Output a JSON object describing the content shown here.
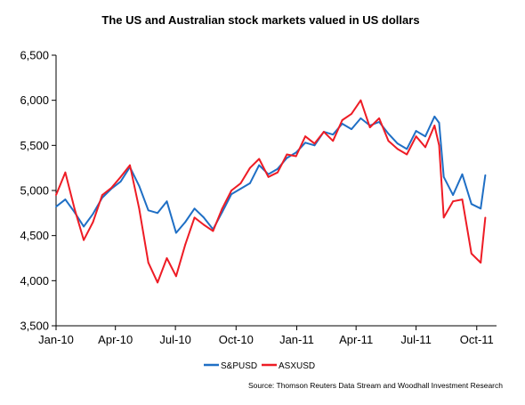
{
  "chart_data": {
    "type": "line",
    "title": "The US and Australian stock markets valued in US dollars",
    "source": "Source: Thomson Reuters Data Stream and Woodhall Investment Research",
    "xlabel": "",
    "ylabel": "",
    "ylim": [
      3500,
      6500
    ],
    "xlim": [
      "2010-01-01",
      "2011-10-31"
    ],
    "y_ticks": [
      "3,500",
      "4,000",
      "4,500",
      "5,000",
      "5,500",
      "6,000",
      "6,500"
    ],
    "y_tick_values": [
      3500,
      4000,
      4500,
      5000,
      5500,
      6000,
      6500
    ],
    "x_ticks": [
      "Jan-10",
      "Apr-10",
      "Jul-10",
      "Oct-10",
      "Jan-11",
      "Apr-11",
      "Jul-11",
      "Oct-11"
    ],
    "x_tick_dates": [
      "2010-01-01",
      "2010-04-01",
      "2010-07-01",
      "2010-10-01",
      "2011-01-01",
      "2011-04-01",
      "2011-07-01",
      "2011-10-01"
    ],
    "grid": false,
    "legend": "bottom-center",
    "colors": {
      "S&PUSD": "#1f6fc5",
      "ASXUSD": "#ee1c25"
    },
    "series": [
      {
        "name": "S&PUSD",
        "x": [
          "2010-01-01",
          "2010-01-15",
          "2010-01-29",
          "2010-02-12",
          "2010-02-26",
          "2010-03-12",
          "2010-03-26",
          "2010-04-09",
          "2010-04-23",
          "2010-05-07",
          "2010-05-21",
          "2010-06-04",
          "2010-06-18",
          "2010-07-02",
          "2010-07-16",
          "2010-07-30",
          "2010-08-13",
          "2010-08-27",
          "2010-09-10",
          "2010-09-24",
          "2010-10-08",
          "2010-10-22",
          "2010-11-05",
          "2010-11-19",
          "2010-12-03",
          "2010-12-17",
          "2010-12-31",
          "2011-01-14",
          "2011-01-28",
          "2011-02-11",
          "2011-02-25",
          "2011-03-11",
          "2011-03-25",
          "2011-04-08",
          "2011-04-22",
          "2011-05-06",
          "2011-05-20",
          "2011-06-03",
          "2011-06-17",
          "2011-07-01",
          "2011-07-15",
          "2011-07-29",
          "2011-08-05",
          "2011-08-12",
          "2011-08-26",
          "2011-09-09",
          "2011-09-23",
          "2011-10-07",
          "2011-10-14"
        ],
        "values": [
          4820,
          4900,
          4760,
          4600,
          4740,
          4920,
          5020,
          5100,
          5260,
          5050,
          4780,
          4750,
          4880,
          4530,
          4650,
          4800,
          4700,
          4570,
          4760,
          4960,
          5020,
          5080,
          5280,
          5180,
          5240,
          5360,
          5420,
          5530,
          5500,
          5650,
          5620,
          5740,
          5680,
          5800,
          5720,
          5760,
          5630,
          5520,
          5460,
          5660,
          5600,
          5820,
          5750,
          5150,
          4950,
          5180,
          4850,
          4800,
          5170
        ]
      },
      {
        "name": "ASXUSD",
        "x": [
          "2010-01-01",
          "2010-01-15",
          "2010-01-29",
          "2010-02-12",
          "2010-02-26",
          "2010-03-12",
          "2010-03-26",
          "2010-04-09",
          "2010-04-23",
          "2010-05-07",
          "2010-05-21",
          "2010-06-04",
          "2010-06-18",
          "2010-07-02",
          "2010-07-16",
          "2010-07-30",
          "2010-08-13",
          "2010-08-27",
          "2010-09-10",
          "2010-09-24",
          "2010-10-08",
          "2010-10-22",
          "2010-11-05",
          "2010-11-19",
          "2010-12-03",
          "2010-12-17",
          "2010-12-31",
          "2011-01-14",
          "2011-01-28",
          "2011-02-11",
          "2011-02-25",
          "2011-03-11",
          "2011-03-25",
          "2011-04-08",
          "2011-04-22",
          "2011-05-06",
          "2011-05-20",
          "2011-06-03",
          "2011-06-17",
          "2011-07-01",
          "2011-07-15",
          "2011-07-29",
          "2011-08-05",
          "2011-08-12",
          "2011-08-26",
          "2011-09-09",
          "2011-09-23",
          "2011-10-07",
          "2011-10-14"
        ],
        "values": [
          4950,
          5200,
          4800,
          4450,
          4650,
          4950,
          5030,
          5150,
          5280,
          4800,
          4200,
          3980,
          4250,
          4050,
          4400,
          4700,
          4620,
          4550,
          4800,
          5000,
          5080,
          5250,
          5350,
          5150,
          5200,
          5400,
          5380,
          5600,
          5520,
          5650,
          5550,
          5780,
          5850,
          6000,
          5700,
          5800,
          5550,
          5460,
          5400,
          5600,
          5480,
          5720,
          5500,
          4700,
          4880,
          4900,
          4300,
          4200,
          4700
        ]
      }
    ]
  }
}
